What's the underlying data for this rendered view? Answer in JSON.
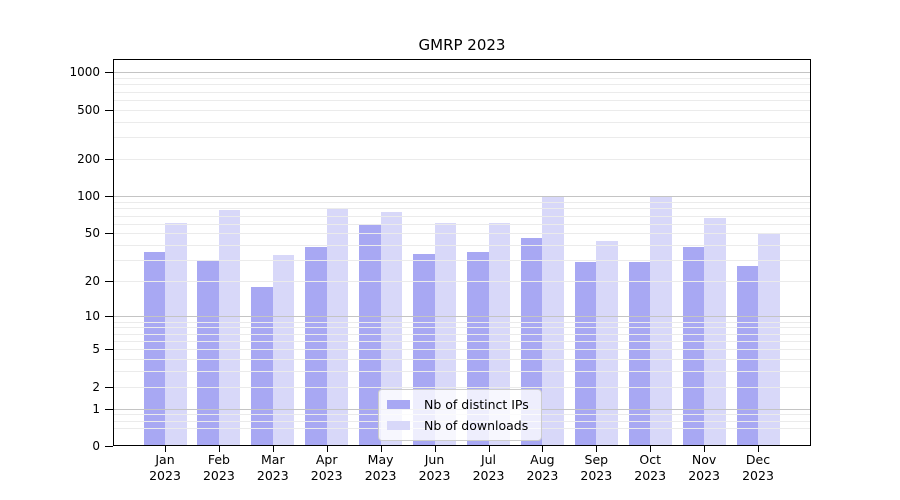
{
  "chart_data": {
    "type": "bar",
    "title": "GMRP 2023",
    "categories": [
      "Jan",
      "Feb",
      "Mar",
      "Apr",
      "May",
      "Jun",
      "Jul",
      "Aug",
      "Sep",
      "Oct",
      "Nov",
      "Dec"
    ],
    "category_year": "2023",
    "series": [
      {
        "name": "Nb of distinct IPs",
        "color": "#a8a8f3",
        "values": [
          35,
          30,
          18,
          39,
          60,
          34,
          35,
          46,
          29,
          29,
          39,
          27
        ]
      },
      {
        "name": "Nb of downloads",
        "color": "#d8d8f9",
        "values": [
          61,
          78,
          33,
          79,
          75,
          61,
          61,
          100,
          43,
          100,
          67,
          50
        ]
      }
    ],
    "y_scale": "log1p",
    "ylim": [
      0,
      1280
    ],
    "y_ticks": [
      0,
      1,
      2,
      5,
      10,
      20,
      50,
      100,
      200,
      500,
      1000
    ],
    "grid_major_values": [
      1,
      10,
      100,
      1000
    ],
    "grid_minor_values": [
      0.4,
      0.6,
      0.8,
      2,
      3,
      4,
      5,
      6,
      7,
      8,
      9,
      20,
      30,
      40,
      50,
      60,
      70,
      80,
      90,
      200,
      300,
      400,
      500,
      600,
      700,
      800,
      900
    ],
    "legend_position": "lower center",
    "colors": {
      "axis": "#000000",
      "grid_major": "#c4c4c4",
      "grid_minor": "#ebebeb",
      "legend_border": "#cccccc",
      "background": "#ffffff"
    }
  }
}
